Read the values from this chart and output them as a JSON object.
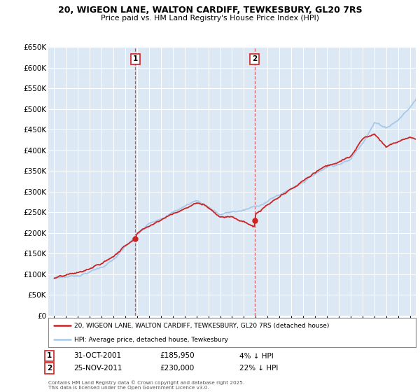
{
  "title": "20, WIGEON LANE, WALTON CARDIFF, TEWKESBURY, GL20 7RS",
  "subtitle": "Price paid vs. HM Land Registry's House Price Index (HPI)",
  "ymax": 650000,
  "xmin": 1994.5,
  "xmax": 2025.5,
  "hpi_color": "#a8c8e8",
  "price_color": "#cc2222",
  "marker1_x": 2001.83,
  "marker2_x": 2011.9,
  "marker1_price": 185950,
  "marker2_price": 230000,
  "marker1_label": "1",
  "marker2_label": "2",
  "marker1_date": "31-OCT-2001",
  "marker2_date": "25-NOV-2011",
  "marker1_pct": "4% ↓ HPI",
  "marker2_pct": "22% ↓ HPI",
  "legend_line1": "20, WIGEON LANE, WALTON CARDIFF, TEWKESBURY, GL20 7RS (detached house)",
  "legend_line2": "HPI: Average price, detached house, Tewkesbury",
  "copyright": "Contains HM Land Registry data © Crown copyright and database right 2025.\nThis data is licensed under the Open Government Licence v3.0.",
  "plot_bg": "#dce9f5",
  "grid_color": "#ffffff"
}
